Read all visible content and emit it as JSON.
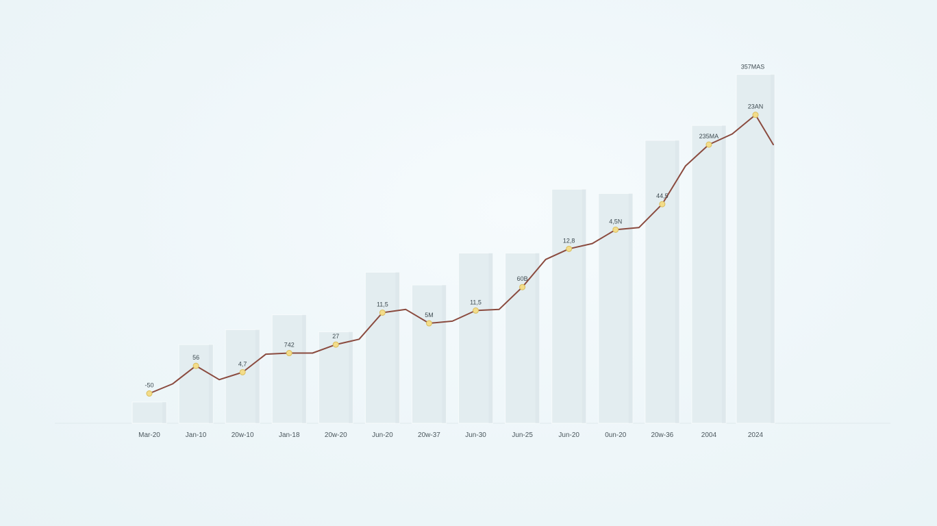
{
  "chart_data": {
    "type": "bar",
    "categories": [
      "Mar-20",
      "Jan-10",
      "20w-10",
      "Jan-18",
      "20w-20",
      "Jun-20",
      "20w-37",
      "Jun-30",
      "Jun-25",
      "Jun-20",
      "0un-20",
      "20w-36",
      "2004",
      "2024"
    ],
    "values": [
      10,
      37,
      44,
      51,
      43,
      71,
      65,
      80,
      80,
      110,
      108,
      133,
      140,
      164
    ],
    "series": [
      {
        "type": "line",
        "values": [
          14,
          27,
          24,
          33,
          37,
          52,
          47,
          53,
          64,
          82,
          91,
          103,
          131,
          145
        ]
      }
    ],
    "line_point_labels": [
      "-50",
      "56",
      "4,7",
      "742",
      "27",
      "11,5",
      "5M",
      "11,5",
      "60B",
      "12,8",
      "4,5N",
      "44,5",
      "235MA",
      "23AN"
    ],
    "bar_top_label": "357MAS",
    "ylim": [
      0,
      170
    ],
    "grid": false,
    "legend": "none",
    "colors": {
      "bar": "#e3edf0",
      "line": "#8a4a3e",
      "point": "#f3dc8a"
    }
  }
}
